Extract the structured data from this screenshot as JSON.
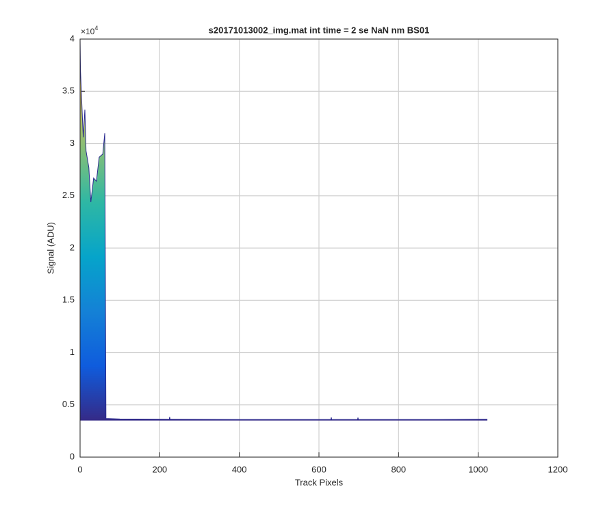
{
  "chart_data": {
    "type": "area",
    "title": "s20171013002_img.mat int time = 2 se  NaN nm BS01",
    "x_label": "Track Pixels",
    "y_label": "Signal (ADU)",
    "y_exponent_base": "×10",
    "y_exponent": "4",
    "x": [
      0,
      1,
      5,
      8,
      12,
      15,
      22,
      27,
      34,
      41,
      48,
      57,
      62,
      65,
      100,
      224,
      225,
      226,
      400,
      630,
      631,
      632,
      697,
      698,
      699,
      900,
      1023
    ],
    "values": [
      40000,
      37000,
      33250,
      30600,
      33250,
      29300,
      27700,
      24400,
      26700,
      26400,
      28700,
      29000,
      31000,
      3700,
      3650,
      3620,
      3850,
      3620,
      3600,
      3600,
      3800,
      3600,
      3600,
      3780,
      3600,
      3600,
      3620
    ],
    "baseline": 3500,
    "line_color": "#2a2a8f",
    "colormap": [
      "#352a87",
      "#0f5cdd",
      "#1481d6",
      "#06a4ca",
      "#2eb7a4",
      "#87bf77",
      "#d1bb59",
      "#f9fb0e"
    ],
    "xlim": [
      0,
      1200
    ],
    "xticks": [
      0,
      200,
      400,
      600,
      800,
      1000,
      1200
    ],
    "ylim": [
      0,
      40000
    ],
    "yticks": [
      0,
      {
        "value": 5000,
        "label": "0.5"
      },
      {
        "value": 10000,
        "label": "1"
      },
      {
        "value": 15000,
        "label": "1.5"
      },
      {
        "value": 20000,
        "label": "2"
      },
      {
        "value": 25000,
        "label": "2.5"
      },
      {
        "value": 30000,
        "label": "3"
      },
      {
        "value": 35000,
        "label": "3.5"
      },
      {
        "value": 40000,
        "label": "4"
      }
    ],
    "grid": true
  }
}
